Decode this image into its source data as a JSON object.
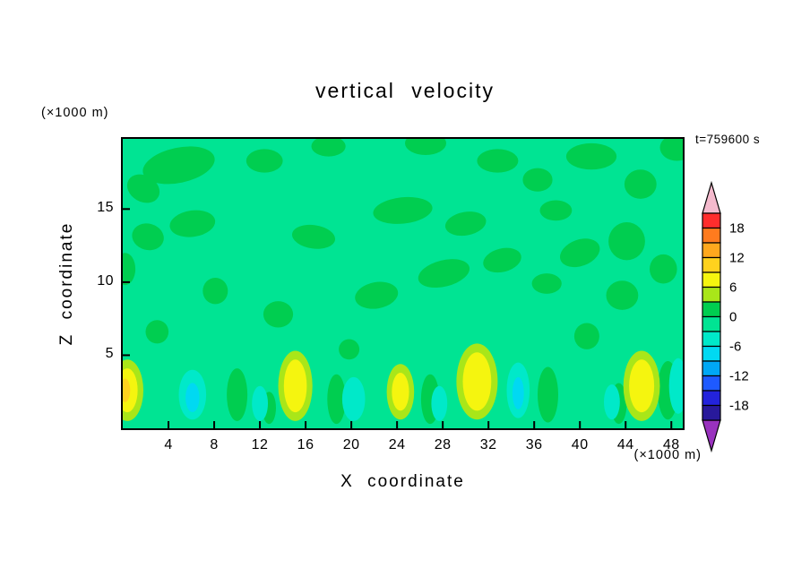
{
  "chart_data": {
    "type": "filled_contour",
    "title": "vertical velocity",
    "time_annotation": "t=759600 s",
    "xlabel": "X coordinate",
    "ylabel": "Z coordinate",
    "x_unit_label": "(×1000 m)",
    "y_unit_label": "(×1000 m)",
    "x_range": [
      0,
      49
    ],
    "z_range": [
      0,
      19.8
    ],
    "x_ticks": [
      4,
      8,
      12,
      16,
      20,
      24,
      28,
      32,
      36,
      40,
      44,
      48
    ],
    "z_ticks": [
      5,
      10,
      15
    ],
    "grid": false,
    "contour_interval": 3,
    "legend_position": "right-colorbar",
    "colorbar": {
      "labels": [
        "18",
        "12",
        "6",
        "0",
        "-6",
        "-12",
        "-18"
      ],
      "over_color": "#F4BACD",
      "under_color": "#9932BE",
      "bands_top_to_bottom": [
        {
          "range": [
            18,
            21
          ],
          "color": "#FF2D2D"
        },
        {
          "range": [
            15,
            18
          ],
          "color": "#FF7B1E"
        },
        {
          "range": [
            12,
            15
          ],
          "color": "#FFA81E"
        },
        {
          "range": [
            9,
            12
          ],
          "color": "#FFD21E"
        },
        {
          "range": [
            6,
            9
          ],
          "color": "#F5F50F"
        },
        {
          "range": [
            3,
            6
          ],
          "color": "#A9E619"
        },
        {
          "range": [
            0,
            3
          ],
          "color": "#00CE50"
        },
        {
          "range": [
            -3,
            0
          ],
          "color": "#00E493"
        },
        {
          "range": [
            -6,
            -3
          ],
          "color": "#00E9C9"
        },
        {
          "range": [
            -9,
            -6
          ],
          "color": "#00D9F2"
        },
        {
          "range": [
            -12,
            -9
          ],
          "color": "#00A8F5"
        },
        {
          "range": [
            -15,
            -12
          ],
          "color": "#1E5AFF"
        },
        {
          "range": [
            -18,
            -15
          ],
          "color": "#2323DC"
        },
        {
          "range": [
            -21,
            -18
          ],
          "color": "#28199B"
        }
      ]
    },
    "field": {
      "description": "Field is mostly near zero (spring-green base band) with green patches aloft, yellow updraft cells and aqua/cyan downdraft patches near the surface",
      "base_band": [
        -3,
        0
      ],
      "base_color": "#00E493",
      "palette": {
        "green": "#00CE50",
        "aqua": "#00E9C9",
        "cyan": "#00D9F2",
        "yellow_green": "#A9E619",
        "yellow": "#F5F50F",
        "orange": "#FFD21E"
      },
      "features": [
        {
          "x": 4.9,
          "z": 18.0,
          "rx": 3.2,
          "rz": 1.2,
          "rot": -12,
          "c": "green"
        },
        {
          "x": 1.8,
          "z": 16.4,
          "rx": 1.5,
          "rz": 0.9,
          "rot": 30,
          "c": "green"
        },
        {
          "x": 6.1,
          "z": 14.0,
          "rx": 2.0,
          "rz": 0.9,
          "rot": -8,
          "c": "green"
        },
        {
          "x": 2.2,
          "z": 13.1,
          "rx": 1.4,
          "rz": 0.9,
          "rot": 15,
          "c": "green"
        },
        {
          "x": 12.4,
          "z": 18.3,
          "rx": 1.6,
          "rz": 0.8,
          "rot": 0,
          "c": "green"
        },
        {
          "x": 18.0,
          "z": 19.3,
          "rx": 1.5,
          "rz": 0.7,
          "rot": 0,
          "c": "green"
        },
        {
          "x": 26.5,
          "z": 19.5,
          "rx": 1.8,
          "rz": 0.8,
          "rot": 0,
          "c": "green"
        },
        {
          "x": 16.7,
          "z": 13.1,
          "rx": 1.9,
          "rz": 0.8,
          "rot": 8,
          "c": "green"
        },
        {
          "x": 24.5,
          "z": 14.9,
          "rx": 2.6,
          "rz": 0.9,
          "rot": -6,
          "c": "green"
        },
        {
          "x": 30.0,
          "z": 14.0,
          "rx": 1.8,
          "rz": 0.8,
          "rot": -10,
          "c": "green"
        },
        {
          "x": 32.8,
          "z": 18.3,
          "rx": 1.8,
          "rz": 0.8,
          "rot": 0,
          "c": "green"
        },
        {
          "x": 36.3,
          "z": 17.0,
          "rx": 1.3,
          "rz": 0.8,
          "rot": 0,
          "c": "green"
        },
        {
          "x": 41.0,
          "z": 18.6,
          "rx": 2.2,
          "rz": 0.9,
          "rot": 0,
          "c": "green"
        },
        {
          "x": 45.3,
          "z": 16.7,
          "rx": 1.4,
          "rz": 1.0,
          "rot": 0,
          "c": "green"
        },
        {
          "x": 48.5,
          "z": 19.2,
          "rx": 1.5,
          "rz": 0.9,
          "rot": 0,
          "c": "green"
        },
        {
          "x": 37.9,
          "z": 14.9,
          "rx": 1.4,
          "rz": 0.7,
          "rot": 0,
          "c": "green"
        },
        {
          "x": 40.0,
          "z": 12.0,
          "rx": 1.8,
          "rz": 0.9,
          "rot": -20,
          "c": "green"
        },
        {
          "x": 44.1,
          "z": 12.8,
          "rx": 1.6,
          "rz": 1.3,
          "rot": 0,
          "c": "green"
        },
        {
          "x": 47.3,
          "z": 10.9,
          "rx": 1.2,
          "rz": 1.0,
          "rot": 0,
          "c": "green"
        },
        {
          "x": 8.1,
          "z": 9.4,
          "rx": 1.1,
          "rz": 0.9,
          "rot": 0,
          "c": "green"
        },
        {
          "x": 13.6,
          "z": 7.8,
          "rx": 1.3,
          "rz": 0.9,
          "rot": 0,
          "c": "green"
        },
        {
          "x": 22.2,
          "z": 9.1,
          "rx": 1.9,
          "rz": 0.9,
          "rot": -10,
          "c": "green"
        },
        {
          "x": 28.1,
          "z": 10.6,
          "rx": 2.3,
          "rz": 0.9,
          "rot": -14,
          "c": "green"
        },
        {
          "x": 33.2,
          "z": 11.5,
          "rx": 1.7,
          "rz": 0.8,
          "rot": -14,
          "c": "green"
        },
        {
          "x": 37.1,
          "z": 9.9,
          "rx": 1.3,
          "rz": 0.7,
          "rot": 0,
          "c": "green"
        },
        {
          "x": 43.7,
          "z": 9.1,
          "rx": 1.4,
          "rz": 1.0,
          "rot": 0,
          "c": "green"
        },
        {
          "x": 40.6,
          "z": 6.3,
          "rx": 1.1,
          "rz": 0.9,
          "rot": 0,
          "c": "green"
        },
        {
          "x": 0.2,
          "z": 10.9,
          "rx": 0.9,
          "rz": 1.1,
          "rot": 0,
          "c": "green"
        },
        {
          "x": 3.0,
          "z": 6.6,
          "rx": 1.0,
          "rz": 0.8,
          "rot": 0,
          "c": "green"
        },
        {
          "x": 19.8,
          "z": 5.4,
          "rx": 0.9,
          "rz": 0.7,
          "rot": 0,
          "c": "green"
        },
        {
          "x": 10.0,
          "z": 2.3,
          "rx": 0.9,
          "rz": 1.8,
          "rot": 0,
          "c": "green"
        },
        {
          "x": 12.8,
          "z": 1.4,
          "rx": 0.6,
          "rz": 1.1,
          "rot": 0,
          "c": "green"
        },
        {
          "x": 18.7,
          "z": 2.0,
          "rx": 0.8,
          "rz": 1.7,
          "rot": 0,
          "c": "green"
        },
        {
          "x": 26.9,
          "z": 2.0,
          "rx": 0.8,
          "rz": 1.7,
          "rot": 0,
          "c": "green"
        },
        {
          "x": 37.2,
          "z": 2.3,
          "rx": 0.9,
          "rz": 1.9,
          "rot": 0,
          "c": "green"
        },
        {
          "x": 43.4,
          "z": 1.7,
          "rx": 0.7,
          "rz": 1.4,
          "rot": 0,
          "c": "green"
        },
        {
          "x": 47.7,
          "z": 2.6,
          "rx": 0.9,
          "rz": 2.0,
          "rot": 0,
          "c": "green"
        },
        {
          "x": 6.1,
          "z": 2.3,
          "rx": 1.2,
          "rz": 1.7,
          "rot": 0,
          "c": "aqua"
        },
        {
          "x": 12.0,
          "z": 1.7,
          "rx": 0.7,
          "rz": 1.2,
          "rot": 0,
          "c": "aqua"
        },
        {
          "x": 20.2,
          "z": 2.0,
          "rx": 1.0,
          "rz": 1.5,
          "rot": 0,
          "c": "aqua"
        },
        {
          "x": 27.7,
          "z": 1.7,
          "rx": 0.7,
          "rz": 1.2,
          "rot": 0,
          "c": "aqua"
        },
        {
          "x": 34.6,
          "z": 2.6,
          "rx": 1.0,
          "rz": 1.9,
          "rot": 0,
          "c": "aqua"
        },
        {
          "x": 42.8,
          "z": 1.8,
          "rx": 0.7,
          "rz": 1.2,
          "rot": 0,
          "c": "aqua"
        },
        {
          "x": 48.6,
          "z": 2.9,
          "rx": 0.8,
          "rz": 1.9,
          "rot": 0,
          "c": "aqua"
        },
        {
          "x": 6.1,
          "z": 2.1,
          "rx": 0.6,
          "rz": 1.0,
          "rot": 0,
          "c": "cyan"
        },
        {
          "x": 34.6,
          "z": 2.4,
          "rx": 0.5,
          "rz": 1.1,
          "rot": 0,
          "c": "cyan"
        },
        {
          "x": 0.4,
          "z": 2.6,
          "rx": 1.4,
          "rz": 2.1,
          "rot": 0,
          "c": "yellow_green"
        },
        {
          "x": 15.1,
          "z": 2.9,
          "rx": 1.5,
          "rz": 2.4,
          "rot": 0,
          "c": "yellow_green"
        },
        {
          "x": 24.3,
          "z": 2.5,
          "rx": 1.2,
          "rz": 1.9,
          "rot": 0,
          "c": "yellow_green"
        },
        {
          "x": 31.0,
          "z": 3.2,
          "rx": 1.8,
          "rz": 2.6,
          "rot": 0,
          "c": "yellow_green"
        },
        {
          "x": 45.4,
          "z": 2.9,
          "rx": 1.6,
          "rz": 2.4,
          "rot": 0,
          "c": "yellow_green"
        },
        {
          "x": 0.4,
          "z": 2.6,
          "rx": 0.9,
          "rz": 1.5,
          "rot": 0,
          "c": "yellow"
        },
        {
          "x": 15.1,
          "z": 2.9,
          "rx": 1.0,
          "rz": 1.8,
          "rot": 0,
          "c": "yellow"
        },
        {
          "x": 24.3,
          "z": 2.5,
          "rx": 0.75,
          "rz": 1.3,
          "rot": 0,
          "c": "yellow"
        },
        {
          "x": 31.0,
          "z": 3.2,
          "rx": 1.25,
          "rz": 2.0,
          "rot": 0,
          "c": "yellow"
        },
        {
          "x": 45.4,
          "z": 2.9,
          "rx": 1.1,
          "rz": 1.8,
          "rot": 0,
          "c": "yellow"
        },
        {
          "x": 0.2,
          "z": 2.6,
          "rx": 0.45,
          "rz": 0.8,
          "rot": 0,
          "c": "orange"
        }
      ]
    }
  }
}
